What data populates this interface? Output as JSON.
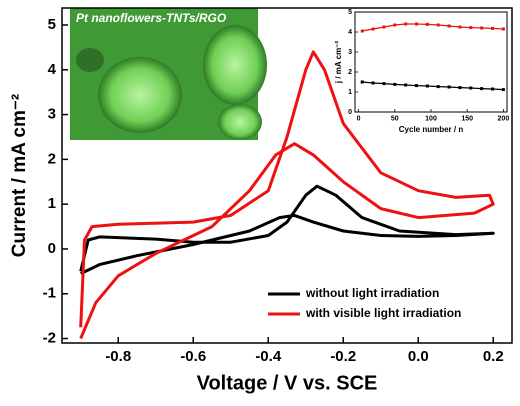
{
  "chart_data": [
    {
      "type": "line",
      "xlabel": "Voltage / V vs. SCE",
      "ylabel": "Current / mA cm⁻²",
      "inset_image_label": "Pt nanoflowers-TNTs/RGO",
      "xlim": [
        -0.95,
        0.25
      ],
      "ylim": [
        -2.1,
        5.38
      ],
      "xticks": [
        -0.8,
        -0.6,
        -0.4,
        -0.2,
        {
          "value": 0,
          "label": "0.0"
        },
        0.2
      ],
      "yticks": [
        -2,
        -1,
        0,
        1,
        2,
        3,
        4,
        5
      ],
      "legend": "lower right",
      "series": [
        {
          "name": "without light irradiation",
          "color": "#000000",
          "x": [
            -0.9,
            -0.88,
            -0.85,
            -0.7,
            -0.6,
            -0.5,
            -0.4,
            -0.35,
            -0.3,
            -0.27,
            -0.22,
            -0.15,
            -0.05,
            0.1,
            0.2,
            0.1,
            0.0,
            -0.1,
            -0.2,
            -0.28,
            -0.33,
            -0.37,
            -0.45,
            -0.6,
            -0.75,
            -0.85,
            -0.9
          ],
          "values": [
            -0.5,
            0.2,
            0.27,
            0.22,
            0.15,
            0.15,
            0.3,
            0.6,
            1.2,
            1.4,
            1.2,
            0.7,
            0.4,
            0.32,
            0.35,
            0.3,
            0.28,
            0.3,
            0.4,
            0.6,
            0.75,
            0.7,
            0.4,
            0.1,
            -0.15,
            -0.35,
            -0.55
          ]
        },
        {
          "name": "with visible light irradiation",
          "color": "#ee1111",
          "x": [
            -0.9,
            -0.89,
            -0.87,
            -0.8,
            -0.6,
            -0.5,
            -0.4,
            -0.35,
            -0.3,
            -0.28,
            -0.25,
            -0.2,
            -0.1,
            0.0,
            0.1,
            0.19,
            0.2,
            0.15,
            0.0,
            -0.1,
            -0.2,
            -0.28,
            -0.33,
            -0.38,
            -0.45,
            -0.55,
            -0.7,
            -0.8,
            -0.86,
            -0.9
          ],
          "values": [
            -1.75,
            0.2,
            0.5,
            0.55,
            0.6,
            0.75,
            1.3,
            2.5,
            4.0,
            4.4,
            4.0,
            2.8,
            1.7,
            1.3,
            1.15,
            1.2,
            1.0,
            0.8,
            0.7,
            0.9,
            1.5,
            2.1,
            2.35,
            2.1,
            1.3,
            0.5,
            -0.1,
            -0.6,
            -1.2,
            -2.0
          ]
        }
      ]
    },
    {
      "type": "line",
      "xlabel": "Cycle number / n",
      "ylabel": "j / mA cm⁻²",
      "xlim": [
        -5,
        205
      ],
      "ylim": [
        0,
        5
      ],
      "xticks": [
        0,
        50,
        100,
        150,
        200
      ],
      "yticks": [
        0,
        1,
        2,
        3,
        4,
        5
      ],
      "series": [
        {
          "color": "#ee1111",
          "x": [
            5,
            20,
            35,
            50,
            65,
            80,
            95,
            110,
            125,
            140,
            155,
            170,
            185,
            200
          ],
          "values": [
            4.05,
            4.15,
            4.25,
            4.35,
            4.4,
            4.4,
            4.38,
            4.35,
            4.3,
            4.25,
            4.22,
            4.2,
            4.18,
            4.15
          ]
        },
        {
          "color": "#000000",
          "x": [
            5,
            20,
            35,
            50,
            65,
            80,
            95,
            110,
            125,
            140,
            155,
            170,
            185,
            200
          ],
          "values": [
            1.5,
            1.45,
            1.42,
            1.38,
            1.35,
            1.32,
            1.3,
            1.27,
            1.25,
            1.22,
            1.2,
            1.17,
            1.15,
            1.12
          ]
        }
      ]
    }
  ]
}
